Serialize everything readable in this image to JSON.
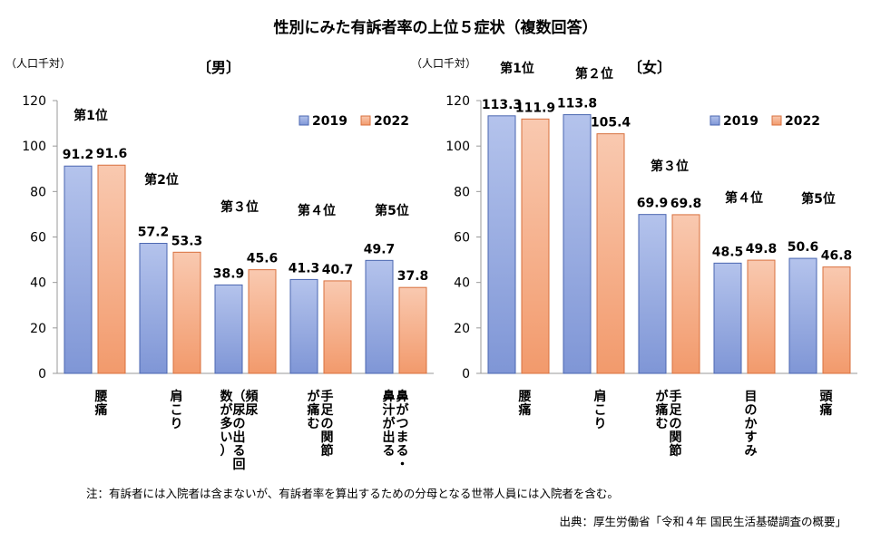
{
  "title": "性別にみた有訴者率の上位５症状（複数回答）",
  "colors": {
    "s2019_top": "#b4c3ec",
    "s2019_bottom": "#7f96d6",
    "s2019_stroke": "#4a66b0",
    "s2022_top": "#f9c9b0",
    "s2022_bottom": "#f29a6c",
    "s2022_stroke": "#d8703e"
  },
  "note": "注：有訴者には入院者は含まないが、有訴者率を算出するための分母となる世帯人員には入院者を含む。",
  "source": "出典：厚生労働省「令和４年 国民生活基礎調査の概要」",
  "chart_data": [
    {
      "type": "bar",
      "title": "〔男〕",
      "unit": "（人口千対）",
      "ylim": [
        0,
        120
      ],
      "yticks": [
        0,
        20,
        40,
        60,
        80,
        100,
        120
      ],
      "grid": false,
      "legend": "top-right",
      "categories": [
        {
          "lines": [
            "腰",
            "痛"
          ],
          "small": []
        },
        {
          "lines": [
            "肩",
            "こ",
            "り"
          ],
          "small": []
        },
        {
          "lines": [
            "頻",
            "尿"
          ],
          "small": [
            "（",
            "尿",
            "の",
            "出",
            "る",
            "回"
          ],
          "small2": [
            "数",
            "が",
            "多",
            "い",
            "）"
          ]
        },
        {
          "lines": [
            "手",
            "足",
            "の",
            "関",
            "節"
          ],
          "small": [],
          "col2": [
            "が",
            "痛",
            "む"
          ]
        },
        {
          "lines": [
            "鼻",
            "が",
            "つ",
            "ま",
            "る",
            "・"
          ],
          "small": [],
          "col2": [
            "鼻",
            "汁",
            "が",
            "出",
            "る"
          ]
        }
      ],
      "ranks": [
        "第1位",
        "第2位",
        "第３位",
        "第４位",
        "第5位"
      ],
      "series": [
        {
          "name": "2019",
          "values": [
            91.2,
            57.2,
            38.9,
            41.3,
            49.7
          ],
          "labels": [
            "91.2",
            "57.2",
            "38.9",
            "41.3",
            "49.7"
          ]
        },
        {
          "name": "2022",
          "values": [
            91.6,
            53.3,
            45.6,
            40.7,
            37.8
          ],
          "labels": [
            "91.6",
            "53.3",
            "45.6",
            "40.7",
            "37.8"
          ]
        }
      ]
    },
    {
      "type": "bar",
      "title": "〔女〕",
      "unit": "（人口千対）",
      "ylim": [
        0,
        120
      ],
      "yticks": [
        0,
        20,
        40,
        60,
        80,
        100,
        120
      ],
      "grid": false,
      "legend": "top-right",
      "categories": [
        {
          "lines": [
            "腰",
            "痛"
          ],
          "small": []
        },
        {
          "lines": [
            "肩",
            "こ",
            "り"
          ],
          "small": []
        },
        {
          "lines": [
            "手",
            "足",
            "の",
            "関",
            "節"
          ],
          "small": [],
          "col2": [
            "が",
            "痛",
            "む"
          ]
        },
        {
          "lines": [
            "目",
            "の",
            "か",
            "す",
            "み"
          ],
          "small": []
        },
        {
          "lines": [
            "頭",
            "痛"
          ],
          "small": []
        }
      ],
      "ranks": [
        "第1位",
        "第２位",
        "第３位",
        "第４位",
        "第5位"
      ],
      "series": [
        {
          "name": "2019",
          "values": [
            113.3,
            113.8,
            69.9,
            48.5,
            50.6
          ],
          "labels": [
            "113.3",
            "113.8",
            "69.9",
            "48.5",
            "50.6"
          ]
        },
        {
          "name": "2022",
          "values": [
            111.9,
            105.4,
            69.8,
            49.8,
            46.8
          ],
          "labels": [
            "111.9",
            "105.4",
            "69.8",
            "49.8",
            "46.8"
          ]
        }
      ]
    }
  ]
}
